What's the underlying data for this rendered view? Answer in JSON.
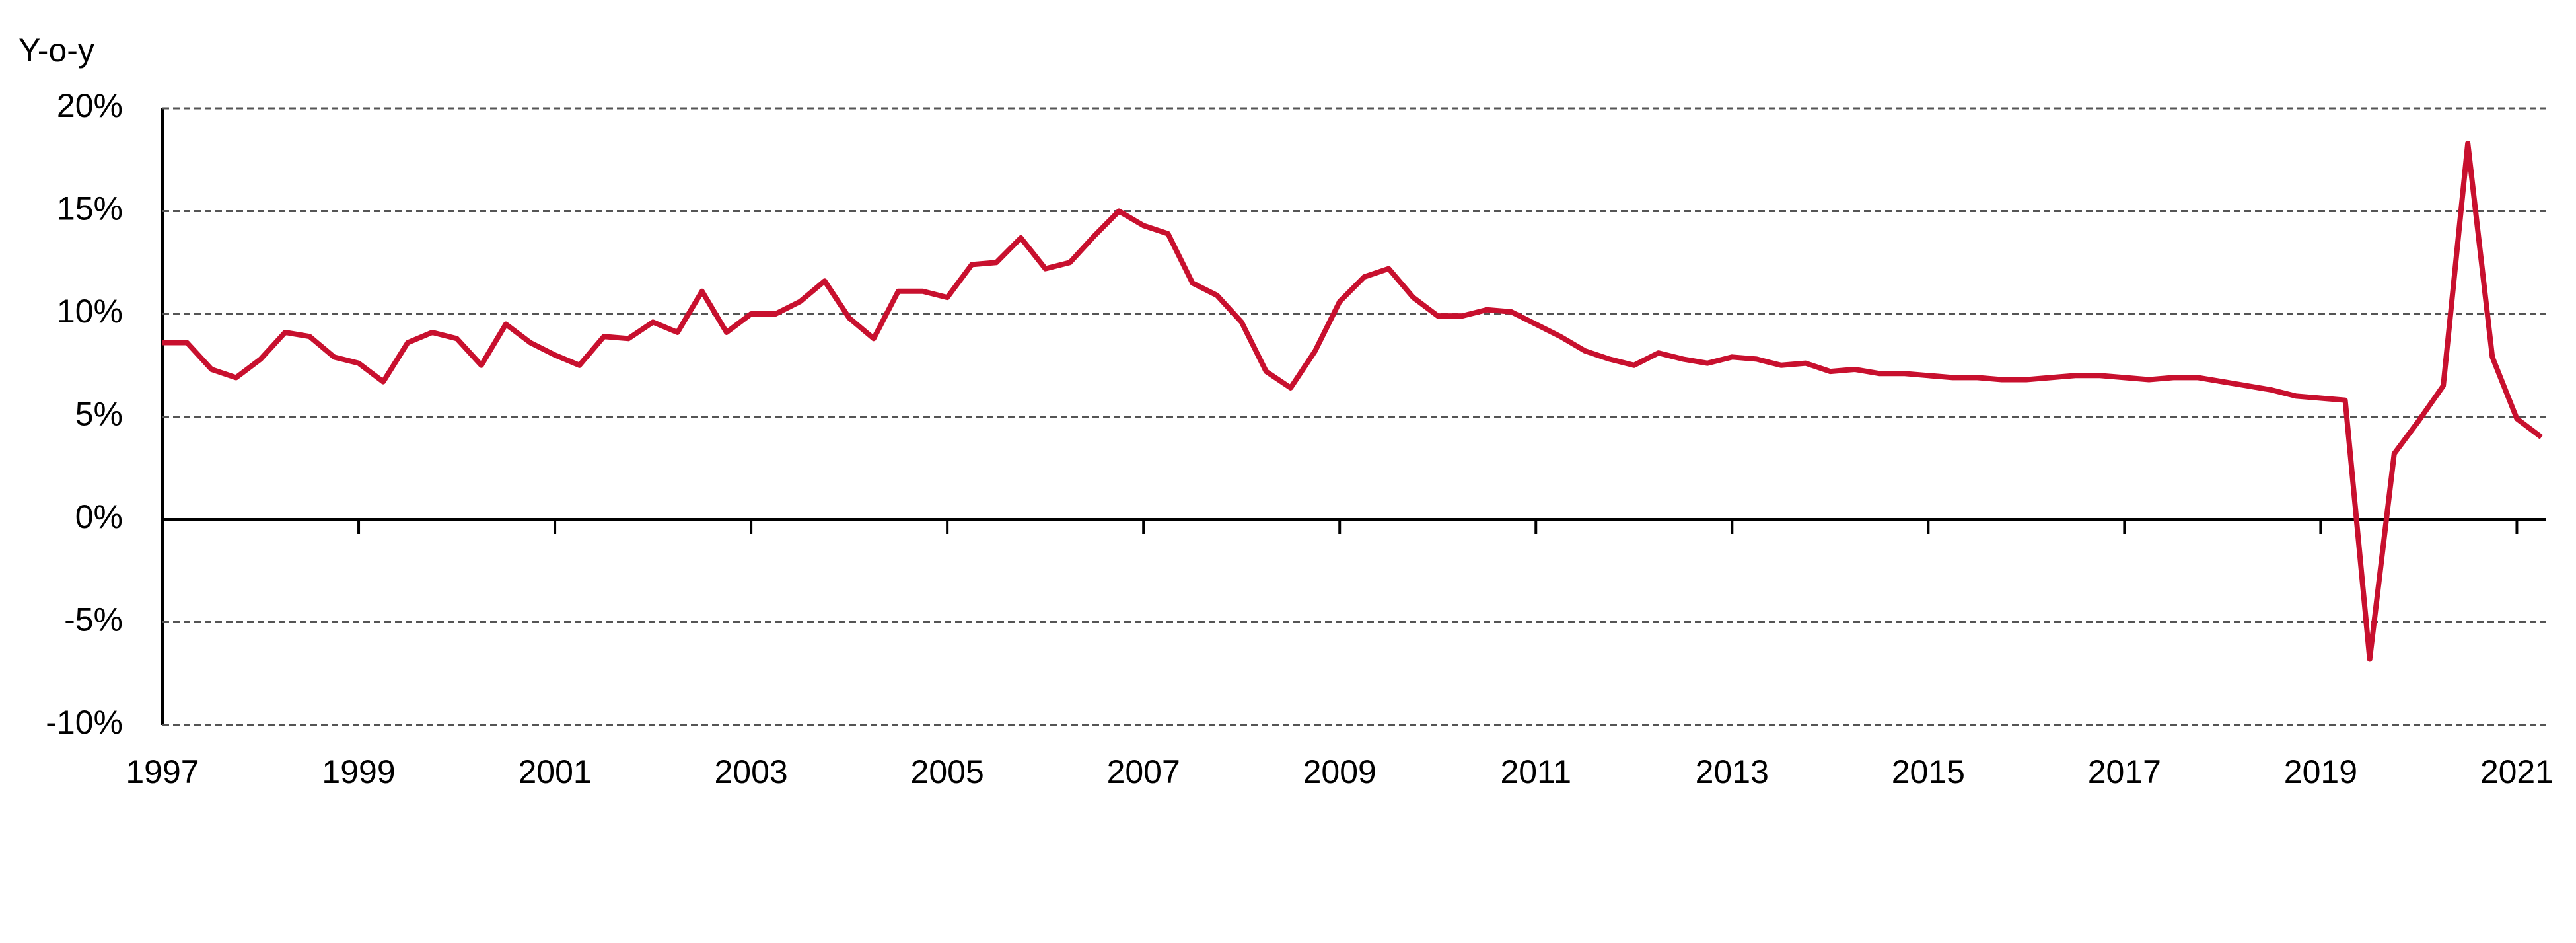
{
  "chart_data": {
    "type": "line",
    "ylabel": "Y-o-y",
    "x": [
      1997,
      1997.25,
      1997.5,
      1997.75,
      1998,
      1998.25,
      1998.5,
      1998.75,
      1999,
      1999.25,
      1999.5,
      1999.75,
      2000,
      2000.25,
      2000.5,
      2000.75,
      2001,
      2001.25,
      2001.5,
      2001.75,
      2002,
      2002.25,
      2002.5,
      2002.75,
      2003,
      2003.25,
      2003.5,
      2003.75,
      2004,
      2004.25,
      2004.5,
      2004.75,
      2005,
      2005.25,
      2005.5,
      2005.75,
      2006,
      2006.25,
      2006.5,
      2006.75,
      2007,
      2007.25,
      2007.5,
      2007.75,
      2008,
      2008.25,
      2008.5,
      2008.75,
      2009,
      2009.25,
      2009.5,
      2009.75,
      2010,
      2010.25,
      2010.5,
      2010.75,
      2011,
      2011.25,
      2011.5,
      2011.75,
      2012,
      2012.25,
      2012.5,
      2012.75,
      2013,
      2013.25,
      2013.5,
      2013.75,
      2014,
      2014.25,
      2014.5,
      2014.75,
      2015,
      2015.25,
      2015.5,
      2015.75,
      2016,
      2016.25,
      2016.5,
      2016.75,
      2017,
      2017.25,
      2017.5,
      2017.75,
      2018,
      2018.25,
      2018.5,
      2018.75,
      2019,
      2019.25,
      2019.5,
      2019.75,
      2020,
      2020.25,
      2020.5,
      2020.75,
      2021,
      2021.25
    ],
    "series": [
      {
        "color": "#c8102e",
        "values": [
          8.6,
          8.6,
          7.3,
          6.9,
          7.8,
          9.1,
          8.9,
          7.9,
          7.6,
          6.7,
          8.6,
          9.1,
          8.8,
          7.5,
          9.5,
          8.6,
          8.0,
          7.5,
          8.9,
          8.8,
          9.6,
          9.1,
          11.1,
          9.1,
          10.0,
          10.0,
          10.6,
          11.6,
          9.8,
          8.8,
          11.1,
          11.1,
          10.8,
          12.4,
          12.5,
          13.7,
          12.2,
          12.5,
          13.8,
          15.0,
          14.3,
          13.9,
          11.5,
          10.9,
          9.6,
          7.2,
          6.4,
          8.2,
          10.6,
          11.8,
          12.2,
          10.8,
          9.9,
          9.9,
          10.2,
          10.1,
          9.5,
          8.9,
          8.2,
          7.8,
          7.5,
          8.1,
          7.8,
          7.6,
          7.9,
          7.8,
          7.5,
          7.6,
          7.2,
          7.3,
          7.1,
          7.1,
          7.0,
          6.9,
          6.9,
          6.8,
          6.8,
          6.9,
          7.0,
          7.0,
          6.9,
          6.8,
          6.9,
          6.9,
          6.7,
          6.5,
          6.3,
          6.0,
          5.9,
          5.8,
          -6.8,
          3.2,
          4.8,
          6.5,
          18.3,
          7.9,
          4.9,
          4.0
        ]
      }
    ],
    "xlim": [
      1997,
      2021.3
    ],
    "xticks": [
      1997,
      1999,
      2001,
      2003,
      2005,
      2007,
      2009,
      2011,
      2013,
      2015,
      2017,
      2019,
      2021
    ],
    "ylim": [
      -10,
      20
    ],
    "yticks": [
      {
        "value": -10,
        "label": "-10%"
      },
      {
        "value": -5,
        "label": "-5%"
      },
      {
        "value": 0,
        "label": "0%"
      },
      {
        "value": 5,
        "label": "5%"
      },
      {
        "value": 10,
        "label": "10%"
      },
      {
        "value": 15,
        "label": "15%"
      },
      {
        "value": 20,
        "label": "20%"
      }
    ],
    "grid": true
  }
}
